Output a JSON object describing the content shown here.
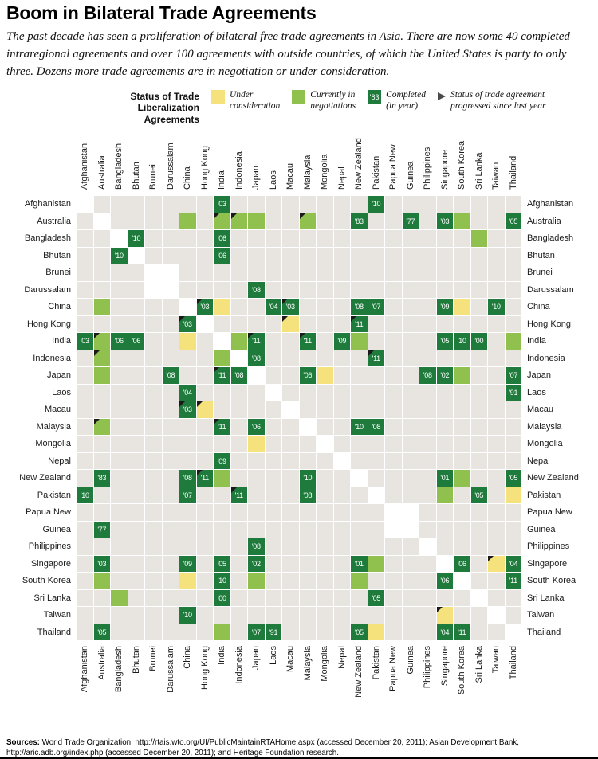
{
  "title": "Boom in Bilateral Trade Agreements",
  "subtitle": "The past decade has seen a proliferation of bilateral free trade agreements in Asia. There are now some 40 completed intraregional agreements and over 100 agreements with outside countries, of which the United States is party to only three. Dozens more trade agreements are in negotiation or under consideration.",
  "legend": {
    "heading_line1": "Status of Trade",
    "heading_line2": "Liberalization Agreements",
    "items": [
      {
        "id": "consideration",
        "line1": "Under",
        "line2": "consideration"
      },
      {
        "id": "negotiating",
        "line1": "Currently in",
        "line2": "negotiations"
      },
      {
        "id": "completed",
        "line1": "Completed",
        "line2": "(in year)",
        "example_year": "'83"
      },
      {
        "id": "progressed",
        "line1": "Status of trade agreement",
        "line2": "progressed since last year"
      }
    ]
  },
  "colors": {
    "consideration": "#f5e27d",
    "negotiating": "#90c04e",
    "completed": "#1e7b3c",
    "empty": "#e8e5e1",
    "diagonal": "#ffffff",
    "flag": "#1a1a1a"
  },
  "chart_data": {
    "type": "heatmap",
    "title": "Boom in Bilateral Trade Agreements",
    "countries": [
      "Afghanistan",
      "Australia",
      "Bangladesh",
      "Bhutan",
      "Brunei",
      "Darussalam",
      "China",
      "Hong Kong",
      "India",
      "Indonesia",
      "Japan",
      "Laos",
      "Macau",
      "Malaysia",
      "Mongolia",
      "Nepal",
      "New Zealand",
      "Pakistan",
      "Papua New",
      "Guinea",
      "Philippines",
      "Singapore",
      "South Korea",
      "Sri Lanka",
      "Taiwan",
      "Thailand"
    ],
    "multiline_country_groups": [
      [
        "Brunei",
        "Darussalam"
      ],
      [
        "Papua New",
        "Guinea"
      ]
    ],
    "status_legend": {
      "consideration": "Under consideration",
      "negotiating": "Currently in negotiations",
      "completed": "Completed (in year)",
      "progressed": "Status of trade agreement progressed since last year"
    },
    "agreements": [
      {
        "a": "Afghanistan",
        "b": "India",
        "status": "completed",
        "year": "'03"
      },
      {
        "a": "Afghanistan",
        "b": "Pakistan",
        "status": "completed",
        "year": "'10"
      },
      {
        "a": "Australia",
        "b": "New Zealand",
        "status": "completed",
        "year": "'83"
      },
      {
        "a": "Australia",
        "b": "Guinea",
        "status": "completed",
        "year": "'77"
      },
      {
        "a": "Australia",
        "b": "Singapore",
        "status": "completed",
        "year": "'03"
      },
      {
        "a": "Australia",
        "b": "Thailand",
        "status": "completed",
        "year": "'05"
      },
      {
        "a": "Australia",
        "b": "China",
        "status": "negotiating"
      },
      {
        "a": "Australia",
        "b": "India",
        "status": "negotiating",
        "progressed": true
      },
      {
        "a": "Australia",
        "b": "Indonesia",
        "status": "negotiating",
        "progressed": true
      },
      {
        "a": "Australia",
        "b": "Japan",
        "status": "negotiating"
      },
      {
        "a": "Australia",
        "b": "Malaysia",
        "status": "negotiating",
        "progressed": true
      },
      {
        "a": "Australia",
        "b": "South Korea",
        "status": "negotiating"
      },
      {
        "a": "Bangladesh",
        "b": "Bhutan",
        "status": "completed",
        "year": "'10"
      },
      {
        "a": "Bangladesh",
        "b": "India",
        "status": "completed",
        "year": "'06"
      },
      {
        "a": "Bangladesh",
        "b": "Sri Lanka",
        "status": "negotiating"
      },
      {
        "a": "Bhutan",
        "b": "India",
        "status": "completed",
        "year": "'06"
      },
      {
        "a": "Darussalam",
        "b": "Japan",
        "status": "completed",
        "year": "'08"
      },
      {
        "a": "China",
        "b": "Hong Kong",
        "status": "completed",
        "year": "'03",
        "progressed": true
      },
      {
        "a": "China",
        "b": "Macau",
        "status": "completed",
        "year": "'03",
        "progressed": true
      },
      {
        "a": "China",
        "b": "Laos",
        "status": "completed",
        "year": "'04"
      },
      {
        "a": "China",
        "b": "New Zealand",
        "status": "completed",
        "year": "'08"
      },
      {
        "a": "China",
        "b": "Pakistan",
        "status": "completed",
        "year": "'07"
      },
      {
        "a": "China",
        "b": "Singapore",
        "status": "completed",
        "year": "'09"
      },
      {
        "a": "China",
        "b": "Taiwan",
        "status": "completed",
        "year": "'10"
      },
      {
        "a": "China",
        "b": "India",
        "status": "consideration"
      },
      {
        "a": "China",
        "b": "South Korea",
        "status": "consideration"
      },
      {
        "a": "Hong Kong",
        "b": "New Zealand",
        "status": "completed",
        "year": "'11",
        "progressed": true
      },
      {
        "a": "Hong Kong",
        "b": "Macau",
        "status": "consideration",
        "progressed": true
      },
      {
        "a": "India",
        "b": "Japan",
        "status": "completed",
        "year": "'11",
        "progressed": true
      },
      {
        "a": "India",
        "b": "Malaysia",
        "status": "completed",
        "year": "'11",
        "progressed": true
      },
      {
        "a": "India",
        "b": "Nepal",
        "status": "completed",
        "year": "'09"
      },
      {
        "a": "India",
        "b": "Singapore",
        "status": "completed",
        "year": "'05"
      },
      {
        "a": "India",
        "b": "South Korea",
        "status": "completed",
        "year": "'10"
      },
      {
        "a": "India",
        "b": "Sri Lanka",
        "status": "completed",
        "year": "'00"
      },
      {
        "a": "India",
        "b": "New Zealand",
        "status": "negotiating"
      },
      {
        "a": "India",
        "b": "Thailand",
        "status": "negotiating"
      },
      {
        "a": "India",
        "b": "Indonesia",
        "status": "negotiating"
      },
      {
        "a": "Indonesia",
        "b": "Japan",
        "status": "completed",
        "year": "'08"
      },
      {
        "a": "Indonesia",
        "b": "Pakistan",
        "status": "completed",
        "year": "'11",
        "progressed": true
      },
      {
        "a": "Japan",
        "b": "Malaysia",
        "status": "completed",
        "year": "'06"
      },
      {
        "a": "Japan",
        "b": "Philippines",
        "status": "completed",
        "year": "'08"
      },
      {
        "a": "Japan",
        "b": "Singapore",
        "status": "completed",
        "year": "'02"
      },
      {
        "a": "Japan",
        "b": "Thailand",
        "status": "completed",
        "year": "'07"
      },
      {
        "a": "Japan",
        "b": "Mongolia",
        "status": "consideration"
      },
      {
        "a": "Japan",
        "b": "South Korea",
        "status": "negotiating"
      },
      {
        "a": "Laos",
        "b": "Thailand",
        "status": "completed",
        "year": "'91"
      },
      {
        "a": "Malaysia",
        "b": "New Zealand",
        "status": "completed",
        "year": "'10"
      },
      {
        "a": "Malaysia",
        "b": "Pakistan",
        "status": "completed",
        "year": "'08"
      },
      {
        "a": "New Zealand",
        "b": "Singapore",
        "status": "completed",
        "year": "'01"
      },
      {
        "a": "New Zealand",
        "b": "Thailand",
        "status": "completed",
        "year": "'05"
      },
      {
        "a": "New Zealand",
        "b": "South Korea",
        "status": "negotiating"
      },
      {
        "a": "Pakistan",
        "b": "Sri Lanka",
        "status": "completed",
        "year": "'05"
      },
      {
        "a": "Pakistan",
        "b": "Singapore",
        "status": "negotiating"
      },
      {
        "a": "Pakistan",
        "b": "Thailand",
        "status": "consideration"
      },
      {
        "a": "Singapore",
        "b": "South Korea",
        "status": "completed",
        "year": "'06"
      },
      {
        "a": "Singapore",
        "b": "Thailand",
        "status": "completed",
        "year": "'04"
      },
      {
        "a": "Singapore",
        "b": "Taiwan",
        "status": "consideration",
        "progressed": true
      },
      {
        "a": "South Korea",
        "b": "Thailand",
        "status": "completed",
        "year": "'11"
      }
    ]
  },
  "sources_label": "Sources:",
  "sources_text": " World Trade Organization, http://rtais.wto.org/UI/PublicMaintainRTAHome.aspx (accessed December 20, 2011); Asian Development Bank, http://aric.adb.org/index.php (accessed December 20, 2011); and Heritage Foundation research."
}
